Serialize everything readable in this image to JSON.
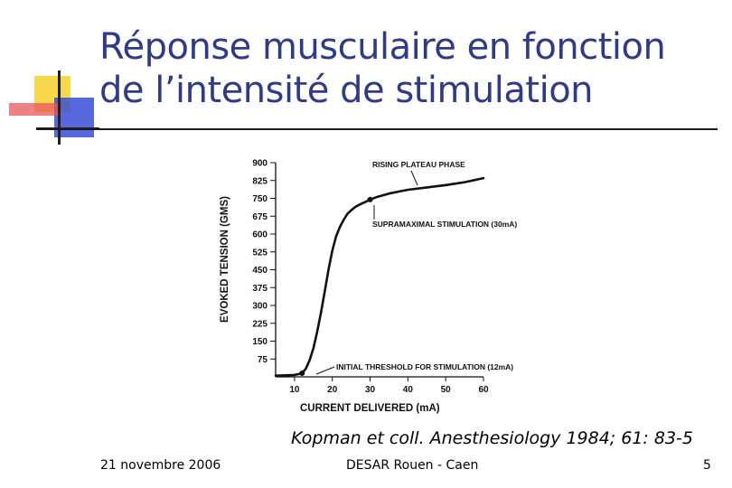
{
  "slide": {
    "title_line1": "Réponse musculaire en fonction",
    "title_line2": "de l’intensité de stimulation",
    "citation": "Kopman et coll. Anesthesiology 1984; 61: 83-5",
    "footer_date": "21 novembre 2006",
    "footer_center": "DESAR Rouen - Caen",
    "page_number": "5",
    "accent_colors": {
      "yellow": "#f5d94a",
      "red": "#e8575a",
      "blue": "#3a4fd6",
      "title": "#2e3a8c"
    }
  },
  "chart_data": {
    "type": "line",
    "xlabel": "CURRENT DELIVERED (mA)",
    "ylabel": "EVOKED TENSION (GMS)",
    "xlim": [
      5,
      60
    ],
    "ylim": [
      0,
      900
    ],
    "x_ticks": [
      10,
      20,
      30,
      40,
      50,
      60
    ],
    "y_ticks": [
      75,
      150,
      225,
      300,
      375,
      450,
      525,
      600,
      675,
      750,
      825,
      900
    ],
    "series": [
      {
        "x": [
          5,
          10,
          12,
          13,
          14,
          15,
          16,
          17,
          18,
          19,
          20,
          21,
          22,
          23,
          24,
          25,
          26,
          27,
          28,
          29,
          30,
          32,
          35,
          38,
          40,
          45,
          50,
          55,
          60
        ],
        "y": [
          5,
          8,
          15,
          35,
          70,
          120,
          190,
          270,
          360,
          450,
          530,
          590,
          630,
          660,
          685,
          700,
          713,
          722,
          730,
          737,
          745,
          757,
          770,
          780,
          786,
          796,
          806,
          818,
          835
        ]
      }
    ],
    "markers": [
      {
        "x": 12,
        "y": 15
      },
      {
        "x": 30,
        "y": 745
      }
    ],
    "annotations": [
      {
        "text": "RISING PLATEAU PHASE"
      },
      {
        "text": "SUPRAMAXIMAL STIMULATION (30mA)"
      },
      {
        "text": "INITIAL THRESHOLD FOR STIMULATION (12mA)"
      }
    ],
    "grid": false
  }
}
